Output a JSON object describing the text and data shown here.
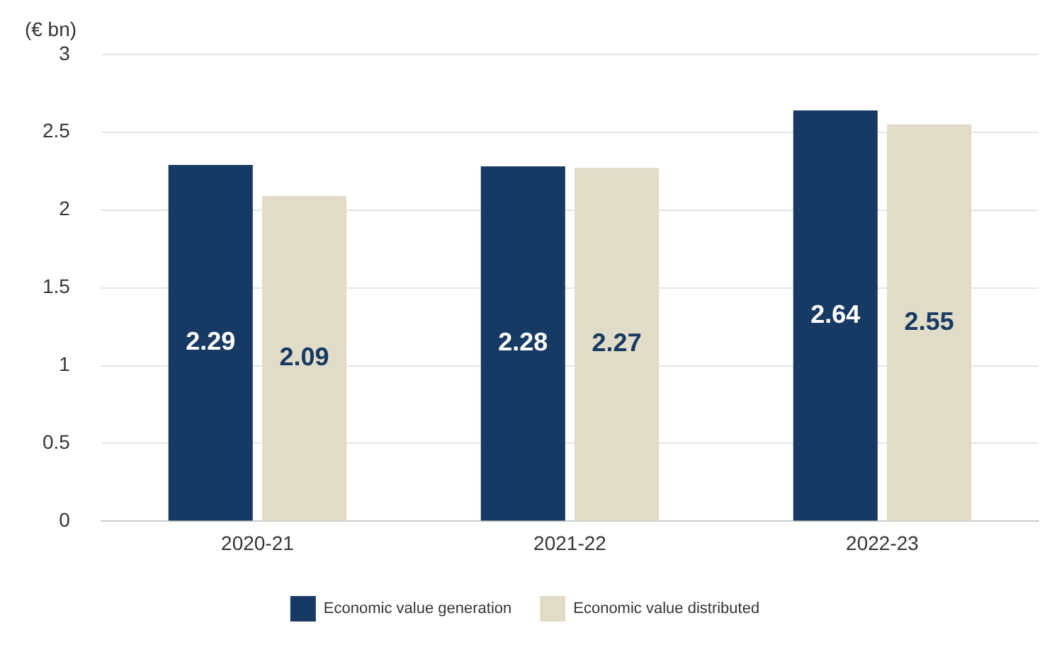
{
  "chart_data": {
    "type": "bar",
    "ylabel": "(€ bn)",
    "categories": [
      "2020-21",
      "2021-22",
      "2022-23"
    ],
    "series": [
      {
        "name": "Economic value generation",
        "color": "#163a63",
        "values": [
          2.29,
          2.28,
          2.64
        ]
      },
      {
        "name": "Economic value distributed",
        "color": "#e0dcc8",
        "values": [
          2.09,
          2.27,
          2.55
        ]
      }
    ],
    "ylim": [
      0,
      3
    ],
    "yticks": [
      0,
      0.5,
      1,
      1.5,
      2,
      2.5,
      3
    ],
    "grid": "y",
    "legend": "bottom",
    "data_labels": true
  }
}
